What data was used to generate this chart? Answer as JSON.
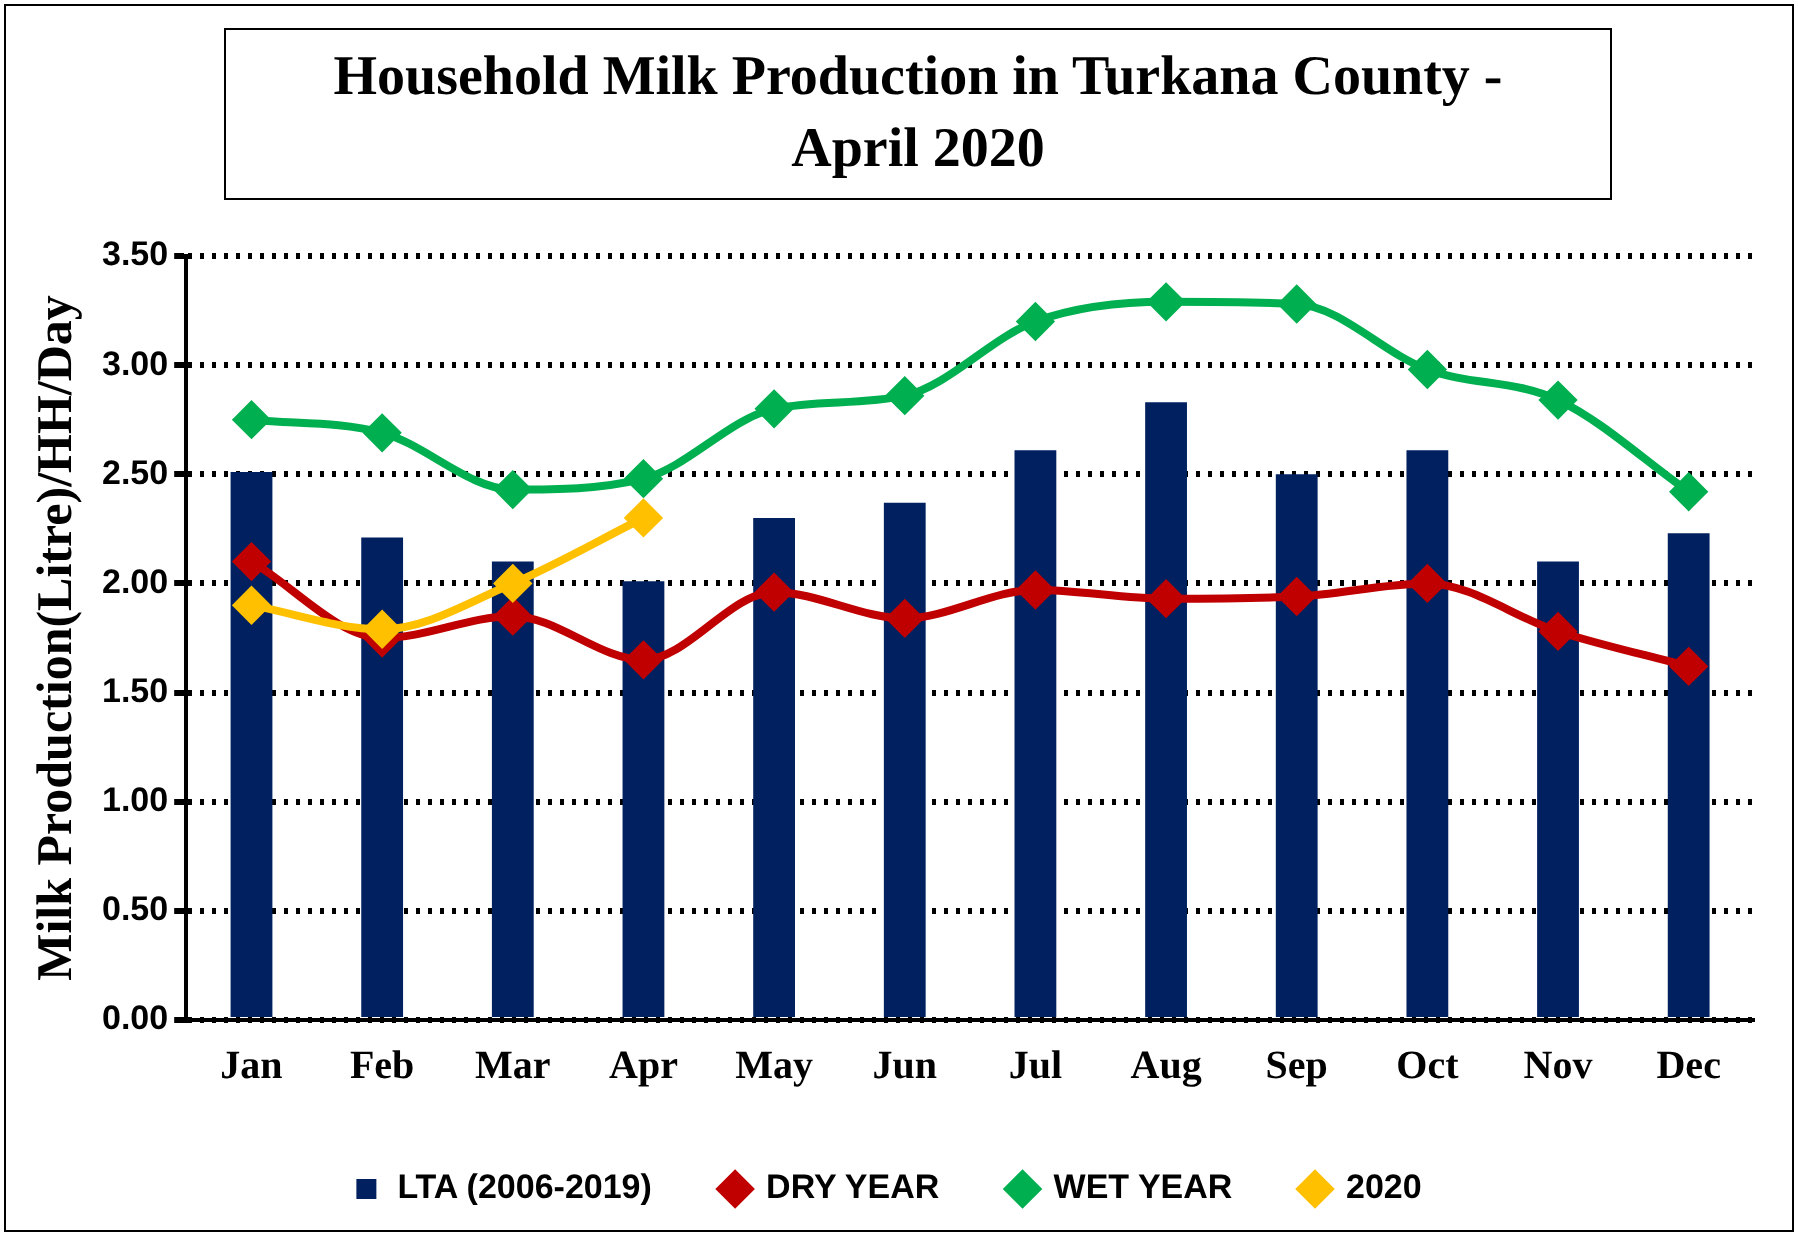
{
  "chart_data": {
    "type": "bar",
    "title": "Household Milk Production in Turkana  County - April 2020",
    "ylabel": "Milk Production(Litre)/HH/Day",
    "categories": [
      "Jan",
      "Feb",
      "Mar",
      "Apr",
      "May",
      "Jun",
      "Jul",
      "Aug",
      "Sep",
      "Oct",
      "Nov",
      "Dec"
    ],
    "series": [
      {
        "name": "LTA (2006-2019)",
        "color": "#002060",
        "values": [
          2.51,
          2.21,
          2.1,
          2.01,
          2.3,
          2.37,
          2.61,
          2.83,
          2.5,
          2.61,
          2.1,
          2.23
        ]
      },
      {
        "name": "DRY YEAR",
        "type": "line",
        "color": "#c00000",
        "values": [
          2.1,
          1.75,
          1.85,
          1.65,
          1.96,
          1.84,
          1.97,
          1.93,
          1.94,
          2.0,
          1.78,
          1.62
        ]
      },
      {
        "name": "WET YEAR",
        "type": "line",
        "color": "#00b050",
        "values": [
          2.75,
          2.69,
          2.43,
          2.48,
          2.8,
          2.86,
          3.2,
          3.29,
          3.28,
          2.98,
          2.84,
          2.42
        ]
      },
      {
        "name": "2020",
        "type": "line",
        "color": "#ffc000",
        "values": [
          1.9,
          1.79,
          2.0,
          2.3,
          null,
          null,
          null,
          null,
          null,
          null,
          null,
          null
        ]
      }
    ],
    "ylim": [
      0,
      3.5
    ],
    "yticks": [
      {
        "value": 0,
        "label": "0.00"
      },
      {
        "value": 0.5,
        "label": "0.50"
      },
      {
        "value": 1,
        "label": "1.00"
      },
      {
        "value": 1.5,
        "label": "1.50"
      },
      {
        "value": 2,
        "label": "2.00"
      },
      {
        "value": 2.5,
        "label": "2.50"
      },
      {
        "value": 3,
        "label": "3.00"
      },
      {
        "value": 3.5,
        "label": "3.50"
      }
    ],
    "grid": "y",
    "legend": "bottom",
    "marker": "diamond",
    "line_style": "solid"
  }
}
